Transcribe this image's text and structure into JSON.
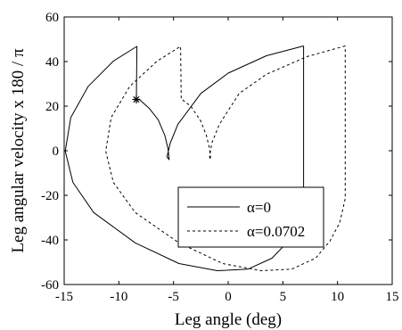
{
  "chart_data": {
    "type": "line",
    "xlabel": "Leg angle (deg)",
    "ylabel": "Leg angular velocity x 180 / π",
    "xlim": [
      -15,
      15
    ],
    "ylim": [
      -60,
      60
    ],
    "xticks": [
      -15,
      -10,
      -5,
      0,
      5,
      10,
      15
    ],
    "yticks": [
      -60,
      -40,
      -20,
      0,
      20,
      40,
      60
    ],
    "xtick_labels": [
      "-15",
      "-10",
      "-5",
      "0",
      "5",
      "10",
      "15"
    ],
    "ytick_labels": [
      "-60",
      "-40",
      "-20",
      "0",
      "20",
      "40",
      "60"
    ],
    "grid": false,
    "legend_position": "lower-right",
    "series": [
      {
        "name": "α=0",
        "style": "solid",
        "color": "#000000",
        "points": [
          [
            6.9,
            47
          ],
          [
            3.5,
            42.6
          ],
          [
            0,
            34.8
          ],
          [
            -2.5,
            25.7
          ],
          [
            -4.6,
            11.9
          ],
          [
            -5.3,
            3.4
          ],
          [
            -5.6,
            -2.8
          ],
          [
            -5.4,
            -4
          ],
          [
            -5.5,
            0.9
          ],
          [
            -5.8,
            6.9
          ],
          [
            -6.4,
            13.9
          ],
          [
            -7.2,
            18.9
          ],
          [
            -8.1,
            22.9
          ],
          [
            -8.4,
            23
          ],
          [
            -8.35,
            46.8
          ],
          [
            -10.5,
            40.2
          ],
          [
            -12.8,
            28.9
          ],
          [
            -14.4,
            14.9
          ],
          [
            -14.9,
            -0.2
          ],
          [
            -14.2,
            -14.2
          ],
          [
            -12.3,
            -27.7
          ],
          [
            -8.5,
            -41.3
          ],
          [
            -4.5,
            -50.6
          ],
          [
            -1,
            -53.8
          ],
          [
            1.8,
            -53.1
          ],
          [
            4,
            -48.2
          ],
          [
            5.5,
            -40.5
          ],
          [
            6.4,
            -32.3
          ],
          [
            6.9,
            -21.5
          ],
          [
            6.9,
            -8
          ],
          [
            6.9,
            47
          ]
        ]
      },
      {
        "name": "α=0.0702",
        "style": "dashed",
        "color": "#000000",
        "points": [
          [
            10.7,
            47
          ],
          [
            7.2,
            42.2
          ],
          [
            3.5,
            34.3
          ],
          [
            1,
            25.7
          ],
          [
            -0.8,
            11.9
          ],
          [
            -1.5,
            3.4
          ],
          [
            -1.7,
            -2.8
          ],
          [
            -1.6,
            -4
          ],
          [
            -1.7,
            0.9
          ],
          [
            -2,
            6.9
          ],
          [
            -2.5,
            13.3
          ],
          [
            -3.4,
            19.9
          ],
          [
            -4.2,
            22.9
          ],
          [
            -4.3,
            23
          ],
          [
            -4.35,
            46.8
          ],
          [
            -6.5,
            40.2
          ],
          [
            -9,
            28.9
          ],
          [
            -10.7,
            14.9
          ],
          [
            -11.2,
            -0.2
          ],
          [
            -10.5,
            -14.2
          ],
          [
            -8.5,
            -27.7
          ],
          [
            -4.5,
            -41.3
          ],
          [
            -0.5,
            -50.6
          ],
          [
            3,
            -53.8
          ],
          [
            5.8,
            -53.1
          ],
          [
            8,
            -48.2
          ],
          [
            9.3,
            -40.5
          ],
          [
            10.2,
            -32.3
          ],
          [
            10.7,
            -21.5
          ],
          [
            10.7,
            -8
          ],
          [
            10.7,
            47
          ]
        ]
      }
    ],
    "marker": {
      "symbol": "*",
      "x": -8.4,
      "y": 23
    }
  }
}
